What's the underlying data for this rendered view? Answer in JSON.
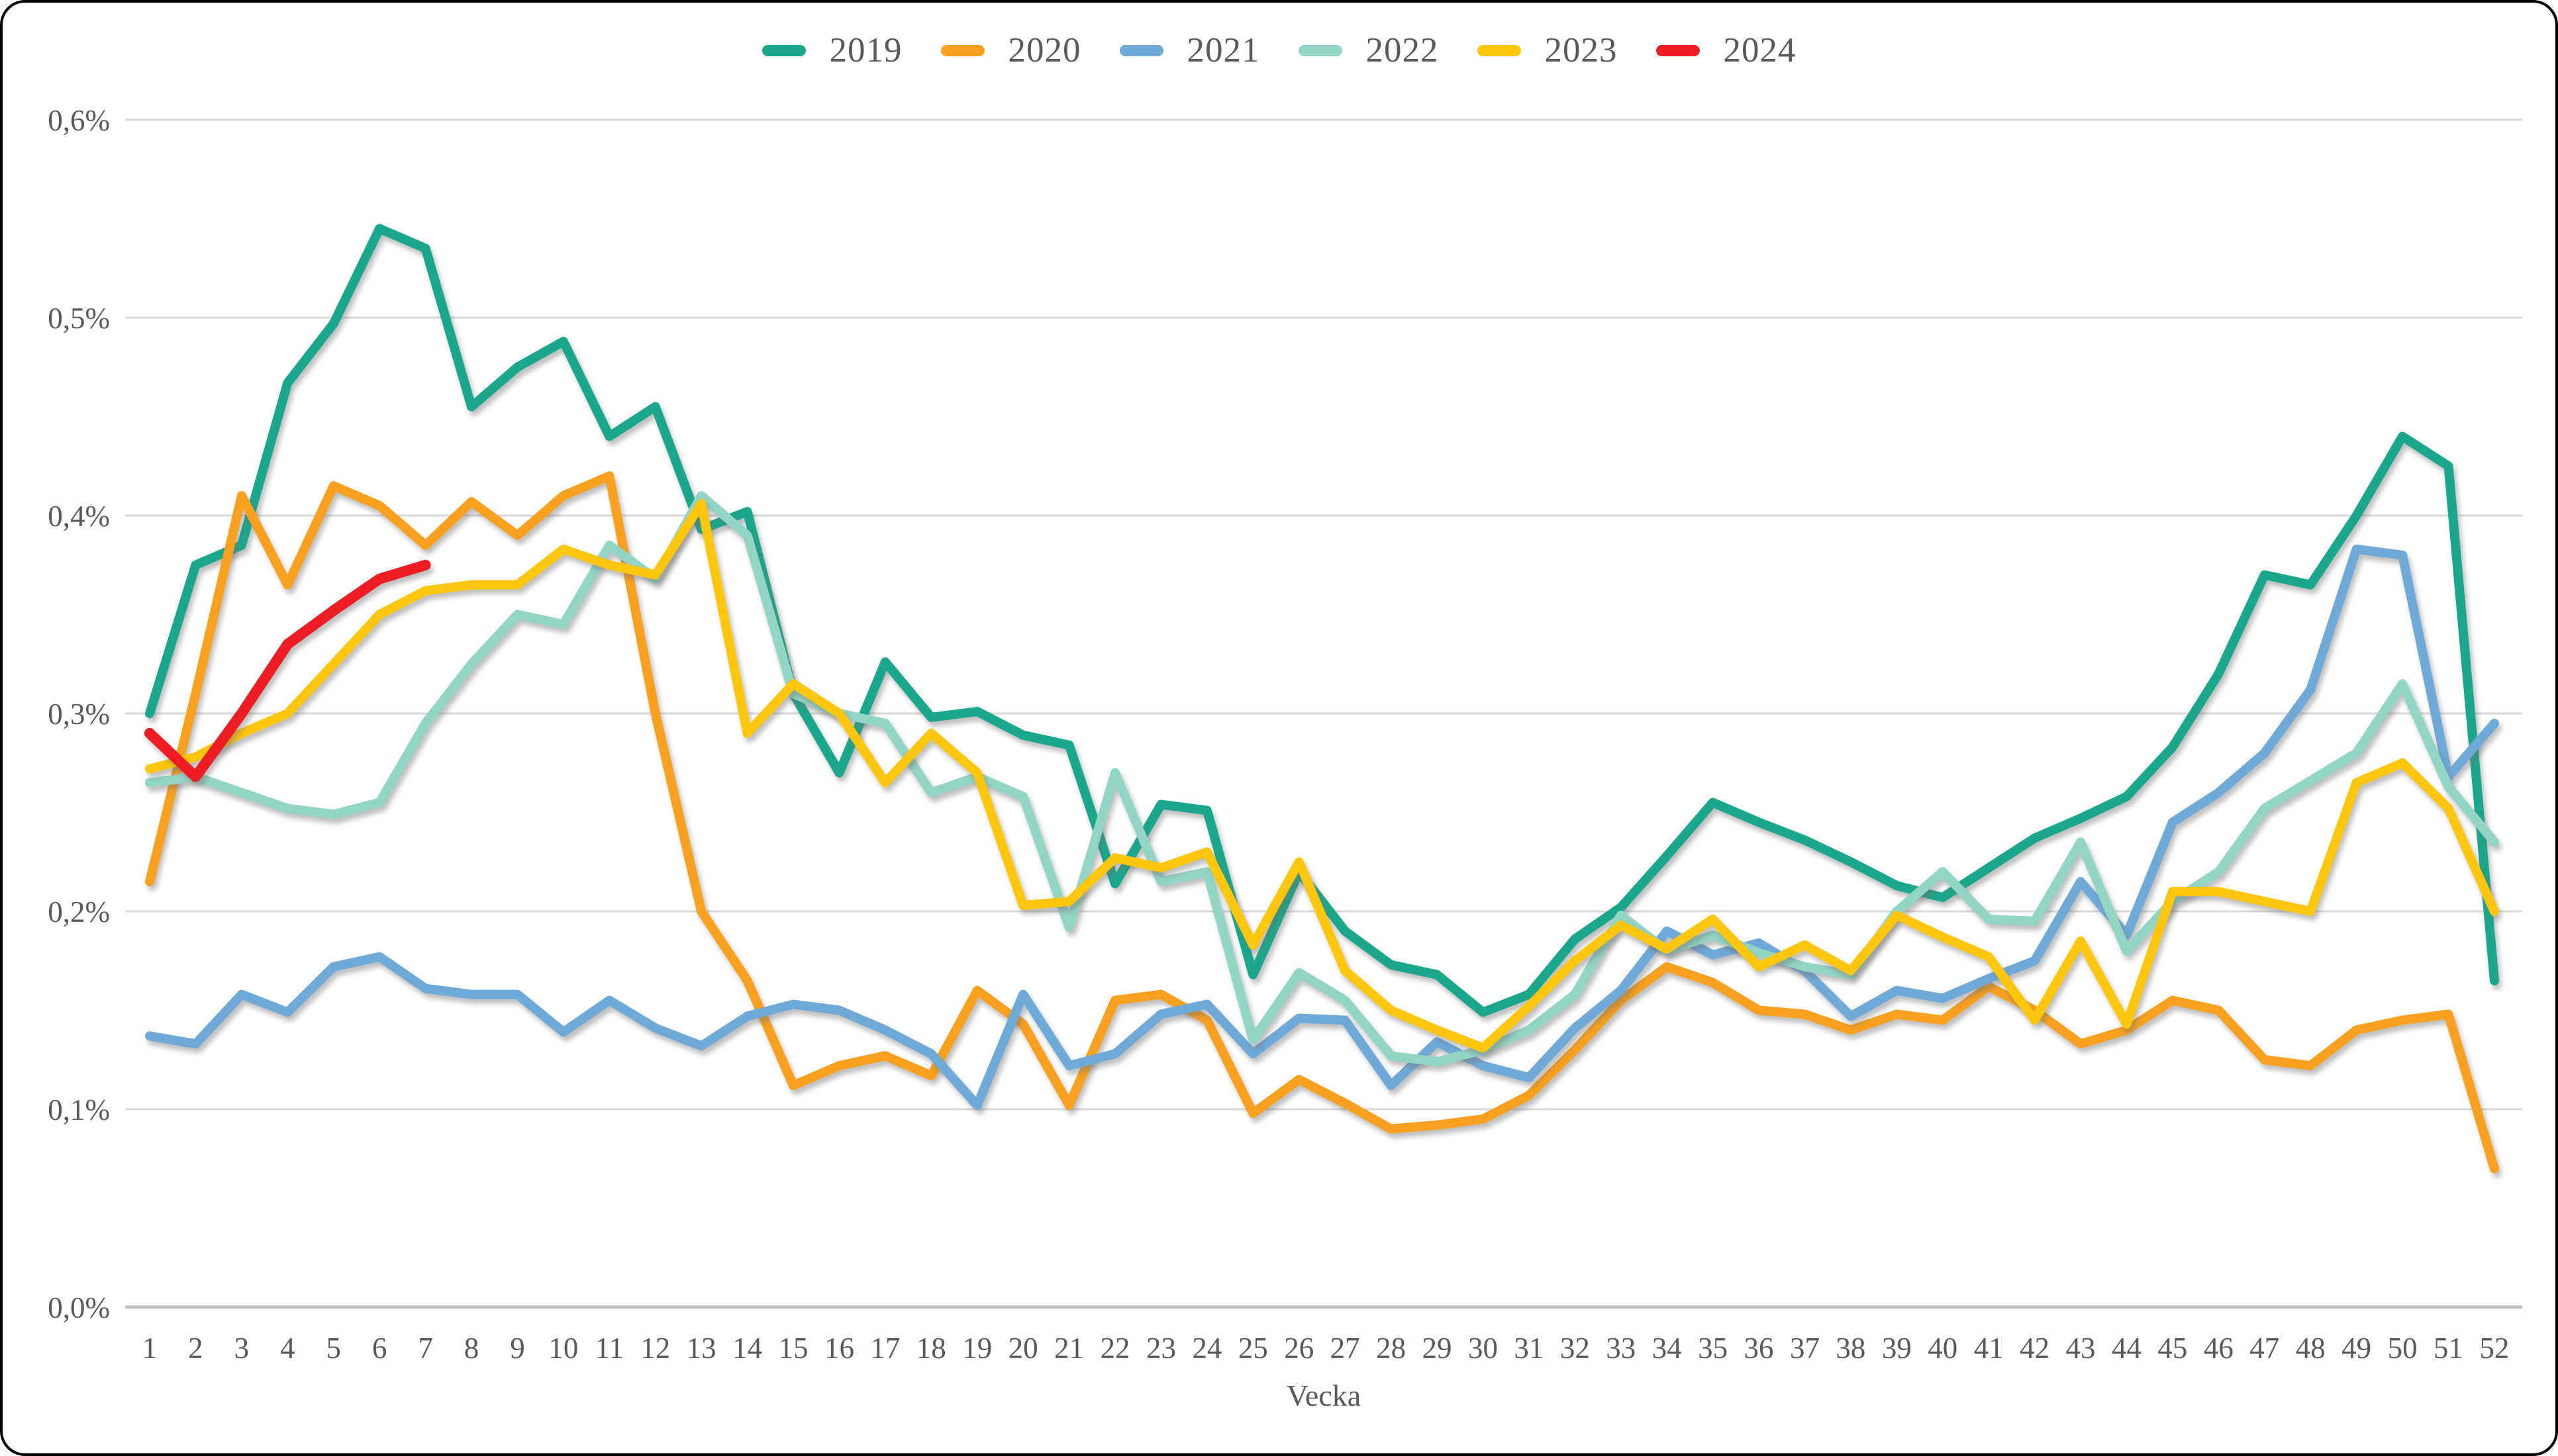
{
  "chart_data": {
    "type": "line",
    "title": "",
    "xlabel": "Vecka",
    "ylabel": "",
    "x": [
      1,
      2,
      3,
      4,
      5,
      6,
      7,
      8,
      9,
      10,
      11,
      12,
      13,
      14,
      15,
      16,
      17,
      18,
      19,
      20,
      21,
      22,
      23,
      24,
      25,
      26,
      27,
      28,
      29,
      30,
      31,
      32,
      33,
      34,
      35,
      36,
      37,
      38,
      39,
      40,
      41,
      42,
      43,
      44,
      45,
      46,
      47,
      48,
      49,
      50,
      51,
      52
    ],
    "y_tick_values": [
      0.0,
      0.1,
      0.2,
      0.3,
      0.4,
      0.5,
      0.6
    ],
    "y_tick_labels": [
      "0,0%",
      "0,1%",
      "0,2%",
      "0,3%",
      "0,4%",
      "0,5%",
      "0,6%"
    ],
    "ylim": [
      0,
      0.6
    ],
    "grid": true,
    "legend_position": "top-center",
    "axis_text_color": "#595959",
    "gridline_color": "#d9d9d9",
    "zeroline_color": "#c3c3c3",
    "series": [
      {
        "name": "2019",
        "color": "#1ba78b",
        "stroke_width": 14,
        "values": [
          0.3,
          0.375,
          0.385,
          0.467,
          0.497,
          0.545,
          0.535,
          0.455,
          0.475,
          0.488,
          0.44,
          0.455,
          0.393,
          0.402,
          0.31,
          0.27,
          0.326,
          0.298,
          0.301,
          0.289,
          0.284,
          0.214,
          0.254,
          0.251,
          0.168,
          0.22,
          0.19,
          0.173,
          0.168,
          0.149,
          0.158,
          0.186,
          0.202,
          0.228,
          0.255,
          0.245,
          0.236,
          0.225,
          0.213,
          0.207,
          0.222,
          0.237,
          0.247,
          0.258,
          0.283,
          0.32,
          0.37,
          0.365,
          0.4,
          0.44,
          0.425,
          0.165
        ]
      },
      {
        "name": "2020",
        "color": "#f9a01e",
        "stroke_width": 14,
        "values": [
          0.215,
          0.31,
          0.41,
          0.365,
          0.415,
          0.405,
          0.385,
          0.407,
          0.39,
          0.41,
          0.42,
          0.3,
          0.2,
          0.165,
          0.112,
          0.122,
          0.127,
          0.117,
          0.16,
          0.143,
          0.102,
          0.155,
          0.158,
          0.145,
          0.098,
          0.115,
          0.103,
          0.09,
          0.092,
          0.095,
          0.107,
          0.13,
          0.155,
          0.172,
          0.164,
          0.15,
          0.148,
          0.14,
          0.148,
          0.145,
          0.162,
          0.15,
          0.133,
          0.14,
          0.155,
          0.15,
          0.125,
          0.122,
          0.14,
          0.145,
          0.148,
          0.07
        ]
      },
      {
        "name": "2021",
        "color": "#6fa9d8",
        "stroke_width": 14,
        "values": [
          0.137,
          0.133,
          0.158,
          0.149,
          0.172,
          0.177,
          0.161,
          0.158,
          0.158,
          0.139,
          0.155,
          0.141,
          0.132,
          0.147,
          0.153,
          0.15,
          0.14,
          0.128,
          0.102,
          0.158,
          0.122,
          0.128,
          0.148,
          0.153,
          0.128,
          0.146,
          0.145,
          0.112,
          0.134,
          0.122,
          0.116,
          0.141,
          0.16,
          0.19,
          0.178,
          0.184,
          0.17,
          0.147,
          0.16,
          0.156,
          0.166,
          0.175,
          0.215,
          0.188,
          0.245,
          0.26,
          0.28,
          0.312,
          0.383,
          0.38,
          0.268,
          0.295
        ]
      },
      {
        "name": "2022",
        "color": "#93d5c4",
        "stroke_width": 14,
        "values": [
          0.265,
          0.268,
          0.26,
          0.252,
          0.249,
          0.255,
          0.295,
          0.325,
          0.35,
          0.345,
          0.385,
          0.368,
          0.41,
          0.39,
          0.31,
          0.3,
          0.295,
          0.26,
          0.268,
          0.258,
          0.192,
          0.27,
          0.215,
          0.22,
          0.135,
          0.169,
          0.155,
          0.127,
          0.124,
          0.13,
          0.14,
          0.158,
          0.198,
          0.18,
          0.188,
          0.179,
          0.172,
          0.168,
          0.2,
          0.22,
          0.196,
          0.195,
          0.235,
          0.18,
          0.205,
          0.22,
          0.252,
          0.266,
          0.28,
          0.315,
          0.263,
          0.235
        ]
      },
      {
        "name": "2023",
        "color": "#ffc60d",
        "stroke_width": 14,
        "values": [
          0.272,
          0.278,
          0.29,
          0.3,
          0.325,
          0.35,
          0.362,
          0.365,
          0.365,
          0.383,
          0.375,
          0.37,
          0.406,
          0.29,
          0.315,
          0.3,
          0.265,
          0.29,
          0.27,
          0.203,
          0.205,
          0.227,
          0.222,
          0.23,
          0.183,
          0.225,
          0.17,
          0.15,
          0.14,
          0.131,
          0.152,
          0.175,
          0.193,
          0.181,
          0.196,
          0.172,
          0.183,
          0.17,
          0.198,
          0.187,
          0.177,
          0.145,
          0.185,
          0.143,
          0.21,
          0.21,
          0.205,
          0.2,
          0.265,
          0.275,
          0.252,
          0.2
        ]
      },
      {
        "name": "2024",
        "color": "#ee1c24",
        "stroke_width": 16,
        "values": [
          0.29,
          0.268,
          0.3,
          0.335,
          0.352,
          0.368,
          0.375
        ]
      }
    ]
  }
}
